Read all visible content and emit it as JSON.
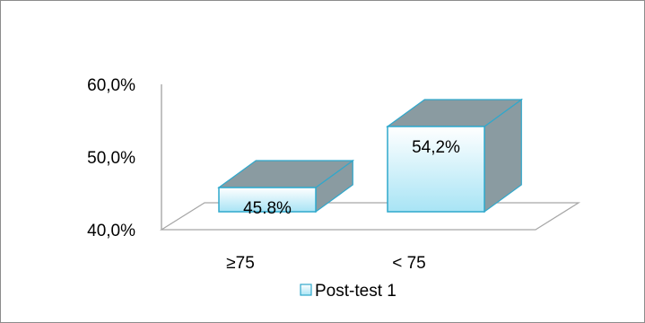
{
  "chart_data": {
    "type": "bar",
    "title": "",
    "xlabel": "",
    "ylabel": "",
    "categories": [
      "≥75",
      "< 75"
    ],
    "series": [
      {
        "name": "Post-test 1",
        "values": [
          45.8,
          54.2
        ]
      }
    ],
    "data_labels": [
      "45.8%",
      "54,2%"
    ],
    "ylim": [
      40,
      60
    ],
    "yticks": [
      {
        "value": 60,
        "label": "60,0%"
      },
      {
        "value": 50,
        "label": "50,0%"
      },
      {
        "value": 40,
        "label": "40,0%"
      }
    ],
    "grid": false,
    "legend_position": "bottom",
    "style": "3d-column",
    "colors": {
      "front_top": "#ffffff",
      "front_bottom": "#a8e4f5",
      "top": "#8a9ba1",
      "side": "#8a9ba1",
      "edge": "#2fa8cc",
      "floor": "#a6a6a6",
      "axis": "#a6a6a6"
    }
  }
}
